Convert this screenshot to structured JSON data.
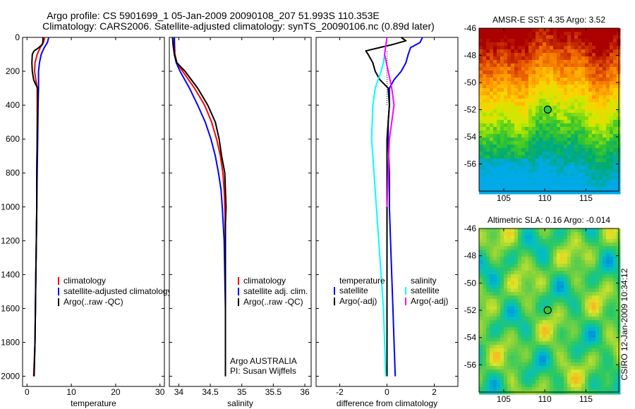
{
  "title_lines": [
    "Argo profile: CS 5901699_1 05-Jan-2009 20090108_207 51.993S 110.353E",
    "Climatology: CARS2006. Satellite-adjusted climatology: synTS_20090106.nc (0.89d later)"
  ],
  "side_label": "CSIRO 12-Jan-2009 10:34:12",
  "colors": {
    "climatology": "#ff0000",
    "satellite": "#0000ff",
    "argo": "#000000",
    "salinity_satellite": "#00ffff",
    "salinity_argo": "#ff00ff",
    "dotted": "#000000"
  },
  "chart_data": [
    {
      "type": "line",
      "id": "temperature",
      "xlabel": "temperature",
      "ylabel": "",
      "xlim": [
        -1,
        31
      ],
      "ylim": [
        2060,
        0
      ],
      "xticks": [
        0,
        10,
        20,
        30
      ],
      "yticks": [
        0,
        200,
        400,
        600,
        800,
        1000,
        1200,
        1400,
        1600,
        1800,
        2000
      ],
      "legend": [
        "climatology",
        "satellite-adjusted climatology",
        "Argo(..raw -QC)"
      ],
      "series": [
        {
          "name": "climatology",
          "color": "#ff0000",
          "depth": [
            0,
            30,
            60,
            100,
            150,
            200,
            250,
            300,
            400,
            600,
            800,
            1000,
            1200,
            1400,
            1600,
            1800,
            2000
          ],
          "values": [
            4.0,
            3.7,
            3.0,
            2.3,
            1.8,
            1.7,
            2.0,
            2.3,
            2.3,
            2.3,
            2.2,
            2.2,
            2.1,
            2.0,
            1.9,
            1.8,
            1.5
          ]
        },
        {
          "name": "satellite-adjusted climatology",
          "color": "#0000ff",
          "depth": [
            0,
            30,
            60,
            100,
            150,
            200,
            250,
            300,
            400,
            600,
            800,
            1000,
            1200,
            1400,
            1600,
            1800,
            2000
          ],
          "values": [
            4.9,
            4.6,
            3.9,
            3.2,
            2.8,
            2.6,
            2.6,
            2.6,
            2.5,
            2.4,
            2.3,
            2.2,
            2.1,
            2.0,
            1.9,
            1.8,
            1.6
          ]
        },
        {
          "name": "Argo(..raw -QC)",
          "color": "#000000",
          "depth": [
            0,
            20,
            40,
            60,
            80,
            100,
            150,
            200,
            250,
            280,
            300,
            400,
            600,
            800,
            1000,
            1200,
            1400,
            1600,
            1800,
            2000
          ],
          "values": [
            3.6,
            3.6,
            3.5,
            2.7,
            1.6,
            1.2,
            1.1,
            1.2,
            1.5,
            2.0,
            2.4,
            2.4,
            2.3,
            2.2,
            2.2,
            2.1,
            2.0,
            1.9,
            1.8,
            1.6
          ]
        }
      ]
    },
    {
      "type": "line",
      "id": "salinity",
      "xlabel": "salinity",
      "ylabel": "",
      "xlim": [
        33.85,
        36.1
      ],
      "ylim": [
        2060,
        0
      ],
      "xticks": [
        34,
        34.5,
        35,
        35.5,
        36
      ],
      "xticklabels": [
        "34",
        "34.5",
        "35",
        "35.5",
        "36"
      ],
      "yticks": [
        0,
        200,
        400,
        600,
        800,
        1000,
        1200,
        1400,
        1600,
        1800,
        2000
      ],
      "legend": [
        "climatology",
        "satellite adj. clim.",
        "Argo(..raw -QC)"
      ],
      "annotations": [
        "Argo AUSTRALIA",
        "PI: Susan Wijffels"
      ],
      "series": [
        {
          "name": "climatology",
          "color": "#ff0000",
          "depth": [
            0,
            100,
            150,
            200,
            300,
            400,
            500,
            600,
            700,
            800,
            900,
            1000,
            1200,
            1400,
            1600,
            1800,
            2000
          ],
          "values": [
            33.93,
            33.94,
            33.97,
            34.06,
            34.25,
            34.41,
            34.52,
            34.6,
            34.66,
            34.7,
            34.72,
            34.73,
            34.74,
            34.74,
            34.74,
            34.74,
            34.74
          ]
        },
        {
          "name": "satellite adj. clim.",
          "color": "#0000ff",
          "depth": [
            0,
            100,
            150,
            200,
            300,
            400,
            500,
            600,
            700,
            800,
            900,
            1000,
            1200,
            1400,
            1600,
            1800,
            2000
          ],
          "values": [
            33.93,
            33.93,
            33.96,
            34.02,
            34.17,
            34.3,
            34.42,
            34.51,
            34.58,
            34.63,
            34.67,
            34.69,
            34.72,
            34.73,
            34.74,
            34.74,
            34.74
          ]
        },
        {
          "name": "Argo(..raw -QC)",
          "color": "#000000",
          "depth": [
            0,
            50,
            100,
            150,
            200,
            300,
            400,
            500,
            600,
            700,
            800,
            900,
            1000,
            1100,
            1200,
            1300,
            1400,
            1500,
            1600,
            1700,
            1800,
            1900,
            2000
          ],
          "values": [
            33.9,
            33.91,
            33.93,
            33.97,
            34.1,
            34.3,
            34.46,
            34.58,
            34.64,
            34.68,
            34.73,
            34.74,
            34.75,
            34.74,
            34.74,
            34.74,
            34.74,
            34.74,
            34.74,
            34.74,
            34.74,
            34.74,
            34.74
          ]
        }
      ]
    },
    {
      "type": "line",
      "id": "difference",
      "xlabel": "difference from climatology",
      "ylabel": "",
      "xlim": [
        -3,
        3
      ],
      "ylim": [
        2060,
        0
      ],
      "xticks": [
        -2,
        0,
        2
      ],
      "yticks": [
        0,
        200,
        400,
        600,
        800,
        1000,
        1200,
        1400,
        1600,
        1800,
        2000
      ],
      "legend": {
        "temperature_header": "temperature",
        "salinity_header": "salinity",
        "temperature": [
          "satellite",
          "Argo(-adj)"
        ],
        "salinity": [
          "satellite",
          "Argo(-adj)"
        ]
      },
      "series": [
        {
          "name": "temperature satellite",
          "color": "#0000ff",
          "depth": [
            0,
            30,
            60,
            100,
            150,
            200,
            250,
            300,
            400,
            500,
            600,
            800,
            1000,
            1200,
            1400,
            1600,
            1800,
            2000
          ],
          "values": [
            1.5,
            1.4,
            1.0,
            0.9,
            0.8,
            0.6,
            0.3,
            0.1,
            0.1,
            0.05,
            0.05,
            0.1,
            0.1,
            0.15,
            0.2,
            0.25,
            0.3,
            0.35
          ]
        },
        {
          "name": "temperature Argo(-adj)",
          "color": "#000000",
          "depth": [
            0,
            20,
            40,
            60,
            80,
            100,
            150,
            200,
            250,
            300,
            400,
            500,
            600,
            800,
            1000,
            1200,
            1400,
            1600,
            1800,
            2000
          ],
          "values": [
            0.6,
            0.8,
            0.3,
            -0.3,
            -0.9,
            -0.8,
            -0.6,
            -0.5,
            -0.3,
            0.05,
            0.1,
            0.05,
            0.0,
            0.0,
            0.0,
            0.0,
            0.0,
            0.0,
            0.0,
            0.0
          ]
        },
        {
          "name": "salinity satellite",
          "color": "#00ffff",
          "depth": [
            0,
            50,
            100,
            150,
            200,
            300,
            400,
            600,
            800,
            1000,
            1200,
            1400,
            1600,
            1800,
            2000
          ],
          "values": [
            0.0,
            -0.05,
            -0.1,
            -0.15,
            -0.25,
            -0.5,
            -0.6,
            -0.65,
            -0.55,
            -0.45,
            -0.35,
            -0.25,
            -0.15,
            -0.1,
            -0.05
          ]
        },
        {
          "name": "salinity Argo(-adj)",
          "color": "#ff00ff",
          "depth": [
            0,
            100,
            200,
            300,
            400,
            500,
            600,
            800,
            1000
          ],
          "values": [
            0.0,
            -0.1,
            0.05,
            0.2,
            0.3,
            0.2,
            0.1,
            0.05,
            0.0
          ]
        }
      ]
    },
    {
      "type": "heatmap",
      "id": "sst_map",
      "title": "AMSR-E SST: 4.35 Argo: 3.52",
      "xlim": [
        102,
        119
      ],
      "ylim": [
        -58,
        -46
      ],
      "xticks": [
        105,
        110,
        115
      ],
      "yticks": [
        -46,
        -48,
        -50,
        -52,
        -54,
        -56
      ],
      "marker": {
        "lon": 110.353,
        "lat": -51.993
      }
    },
    {
      "type": "heatmap",
      "id": "sla_map",
      "title": "Altimetric SLA: 0.16 Argo: -0.014",
      "xlim": [
        102,
        119
      ],
      "ylim": [
        -58,
        -46
      ],
      "xticks": [
        105,
        110,
        115
      ],
      "yticks": [
        -46,
        -48,
        -50,
        -52,
        -54,
        -56
      ],
      "marker": {
        "lon": 110.353,
        "lat": -51.993
      }
    }
  ]
}
